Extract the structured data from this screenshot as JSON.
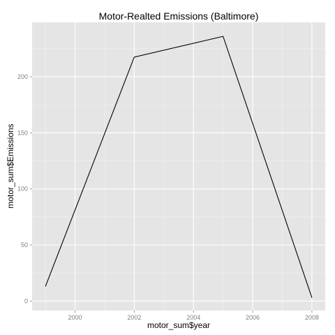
{
  "chart_data": {
    "type": "line",
    "title": "Motor-Realted Emissions (Baltimore)",
    "xlabel": "motor_sum$year",
    "ylabel": "motor_sum$Emissions",
    "x": [
      1999,
      2002,
      2005,
      2008
    ],
    "series": [
      {
        "values": [
          13,
          217.5,
          236,
          3
        ]
      }
    ],
    "xlim": [
      1998.55,
      2008.45
    ],
    "ylim": [
      -8.5,
      248.5
    ],
    "x_ticks": [
      2000,
      2002,
      2004,
      2006,
      2008
    ],
    "x_tick_labels": [
      "2000",
      "2002",
      "2004",
      "2006",
      "2008"
    ],
    "y_ticks": [
      0,
      50,
      100,
      150,
      200
    ],
    "y_tick_labels": [
      "0",
      "50",
      "100",
      "150",
      "200"
    ],
    "grid": true,
    "legend": "none",
    "colors": {
      "panel_background": "#e5e5e5",
      "grid_major": "#ffffff",
      "grid_minor": "#f2f2f2",
      "line": "#000000",
      "tick_text": "#7f7f7f"
    }
  }
}
